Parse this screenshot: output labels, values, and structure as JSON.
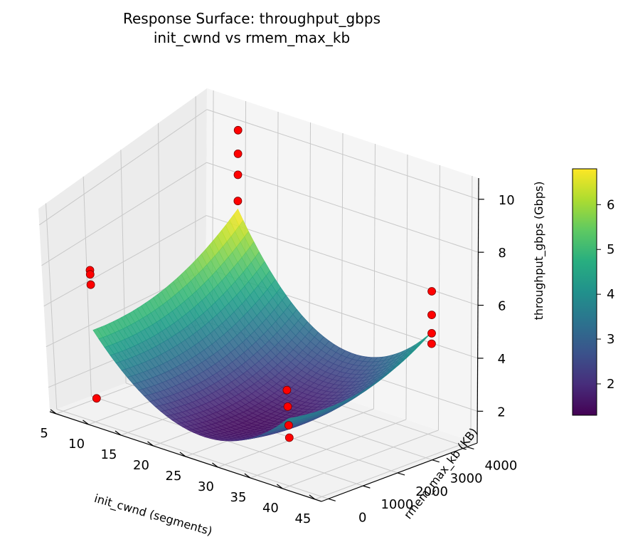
{
  "chart_data": {
    "type": "surface3d",
    "title": "Response Surface: throughput_gbps",
    "subtitle": "init_cwnd vs rmem_max_kb",
    "xlabel": "init_cwnd (segments)",
    "ylabel": "rmem_max_kb (KB)",
    "zlabel": "throughput_gbps (Gbps)",
    "x_ticks": [
      5,
      10,
      15,
      20,
      25,
      30,
      35,
      40,
      45
    ],
    "y_ticks": [
      0,
      1000,
      2000,
      3000,
      4000
    ],
    "z_ticks": [
      2,
      4,
      6,
      8,
      10
    ],
    "xlim": [
      4,
      46
    ],
    "ylim": [
      -200,
      4300
    ],
    "zlim": [
      0.8,
      10.8
    ],
    "colormap": "viridis",
    "colorbar_ticks": [
      2,
      3,
      4,
      5,
      6
    ],
    "colorbar_range": [
      1.3,
      6.8
    ],
    "surface": {
      "x_range": [
        10,
        40
      ],
      "y_range": [
        64,
        4096
      ],
      "corners": {
        "x10_y64": 5.1,
        "x40_y64": 4.3,
        "x10_y4096": 6.8,
        "x40_y4096": 4.7
      },
      "minimum": {
        "x": 27,
        "y": 1300,
        "z": 1.5
      }
    },
    "points": [
      {
        "x": 10,
        "y": 4096,
        "z": 9.9
      },
      {
        "x": 10,
        "y": 4096,
        "z": 9.0
      },
      {
        "x": 10,
        "y": 4096,
        "z": 8.2
      },
      {
        "x": 10,
        "y": 4096,
        "z": 7.2
      },
      {
        "x": 10,
        "y": 64,
        "z": 8.1
      },
      {
        "x": 10,
        "y": 64,
        "z": 7.9
      },
      {
        "x": 10,
        "y": 64,
        "z": 7.4
      },
      {
        "x": 10,
        "y": 64,
        "z": 1.9
      },
      {
        "x": 40,
        "y": 4096,
        "z": 6.2
      },
      {
        "x": 40,
        "y": 4096,
        "z": 5.3
      },
      {
        "x": 40,
        "y": 4096,
        "z": 4.6
      },
      {
        "x": 40,
        "y": 4096,
        "z": 4.2
      },
      {
        "x": 40,
        "y": 64,
        "z": 5.4
      },
      {
        "x": 40,
        "y": 64,
        "z": 4.6
      },
      {
        "x": 40,
        "y": 64,
        "z": 3.7
      },
      {
        "x": 40,
        "y": 64,
        "z": 3.1
      }
    ],
    "point_color": "#ff0000",
    "grid": true
  }
}
